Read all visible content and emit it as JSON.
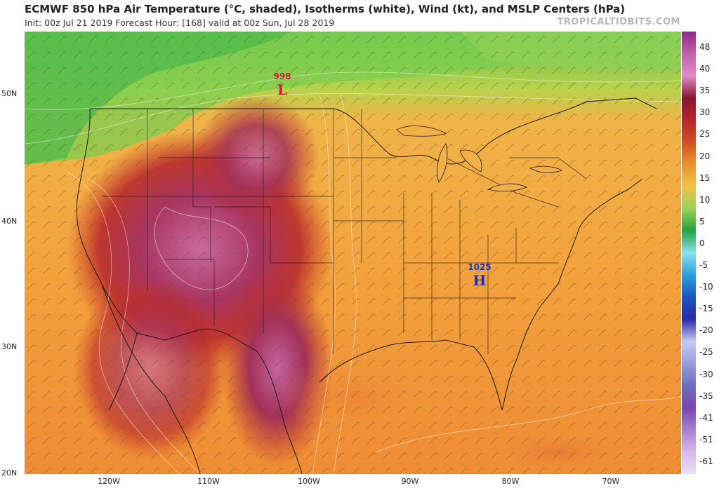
{
  "header": {
    "title": "ECMWF 850 hPa Air Temperature (°C, shaded), Isotherms (white), Wind (kt), and MSLP Centers (hPa)",
    "subtitle": "Init: 00z Jul 21 2019   Forecast Hour: [168]   valid at 00z Sun, Jul 28 2019",
    "brand": "TROPICALTIDBITS.COM"
  },
  "map": {
    "latitude_labels": [
      "50N",
      "40N",
      "30N",
      "20N"
    ],
    "longitude_labels": [
      "120W",
      "110W",
      "100W",
      "90W",
      "80W",
      "70W"
    ],
    "pressure_centers": [
      {
        "type": "L",
        "value": "998",
        "color": "#cc2233"
      },
      {
        "type": "H",
        "value": "1025",
        "color": "#1d2fc0"
      }
    ]
  },
  "colorbar": {
    "labels": [
      "48",
      "40",
      "35",
      "30",
      "25",
      "20",
      "15",
      "10",
      "5",
      "0",
      "-5",
      "-10",
      "-15",
      "-20",
      "-25",
      "-30",
      "-35",
      "-41",
      "-51",
      "-61"
    ],
    "colors": [
      "#8a2a8a",
      "#c45fa8",
      "#e08cc8",
      "#8a1530",
      "#b8262d",
      "#d54d23",
      "#e8942f",
      "#f3c14a",
      "#9bd25a",
      "#23a33d",
      "#8de0ee",
      "#2ba0dc",
      "#1c56c2",
      "#2a2aa8",
      "#c8c8f5",
      "#9b9bde",
      "#6f6fc0",
      "#7a45b0",
      "#a87ed0",
      "#d8b8ea",
      "#ece0f5"
    ]
  }
}
